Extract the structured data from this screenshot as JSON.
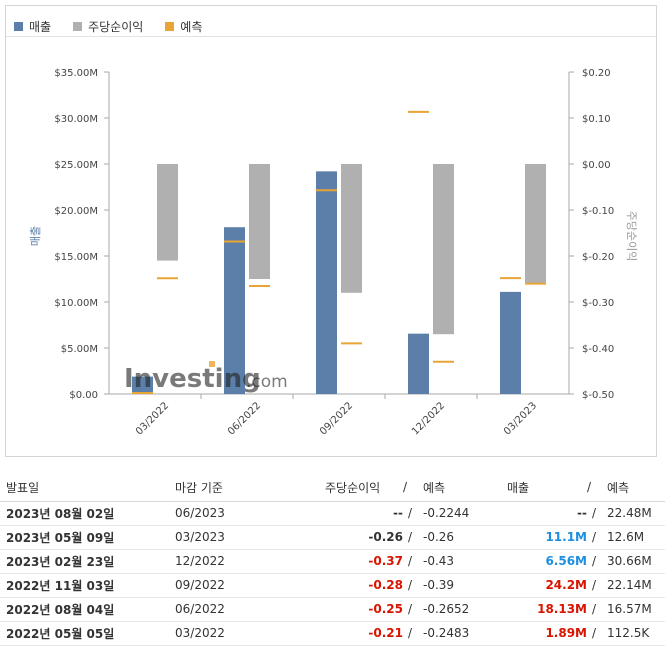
{
  "legend": [
    {
      "label": "매출",
      "color": "#5b7fa8"
    },
    {
      "label": "주당순이익",
      "color": "#b0b0b0"
    },
    {
      "label": "예측",
      "color": "#e8a435"
    }
  ],
  "watermark": {
    "brand": "Investing",
    "suffix": ".com"
  },
  "chart_data": {
    "type": "bar",
    "categories": [
      "03/2022",
      "06/2022",
      "09/2022",
      "12/2022",
      "03/2023"
    ],
    "left_axis": {
      "label": "매출",
      "ticks": [
        "$0.00",
        "$5.00M",
        "$10.00M",
        "$15.00M",
        "$20.00M",
        "$25.00M",
        "$30.00M",
        "$35.00M"
      ],
      "ylim": [
        0,
        35
      ]
    },
    "right_axis": {
      "label": "주당순이익",
      "ticks": [
        "$-0.50",
        "$-0.40",
        "$-0.30",
        "$-0.20",
        "$-0.10",
        "$0.00",
        "$0.10",
        "$0.20"
      ],
      "ylim": [
        -0.5,
        0.2
      ]
    },
    "series": [
      {
        "name": "매출",
        "axis": "left",
        "values": [
          1.89,
          18.13,
          24.2,
          6.56,
          11.1
        ]
      },
      {
        "name": "매출 예측",
        "axis": "left",
        "values": [
          0.1125,
          16.57,
          22.14,
          30.66,
          12.6
        ]
      },
      {
        "name": "주당순이익",
        "axis": "right",
        "values": [
          -0.21,
          -0.25,
          -0.28,
          -0.37,
          -0.26
        ]
      },
      {
        "name": "주당순이익 예측",
        "axis": "right",
        "values": [
          -0.2483,
          -0.2652,
          -0.39,
          -0.43,
          -0.26
        ]
      }
    ],
    "grid": false
  },
  "table": {
    "headers": {
      "date": "발표일",
      "period": "마감 기준",
      "eps": "주당순이익",
      "sep": "/",
      "eps_forecast": "예측",
      "revenue": "매출",
      "revenue_forecast": "예측"
    },
    "rows": [
      {
        "date": "2023년 08월 02일",
        "period": "06/2023",
        "eps": "--",
        "eps_forecast": "-0.2244",
        "revenue": "--",
        "revenue_forecast": "22.48M",
        "eps_style": "none",
        "rev_style": "none"
      },
      {
        "date": "2023년 05월 09일",
        "period": "03/2023",
        "eps": "-0.26",
        "eps_forecast": "-0.26",
        "revenue": "11.1M",
        "revenue_forecast": "12.6M",
        "eps_style": "none",
        "rev_style": "pos-blue"
      },
      {
        "date": "2023년 02월 23일",
        "period": "12/2022",
        "eps": "-0.37",
        "eps_forecast": "-0.43",
        "revenue": "6.56M",
        "revenue_forecast": "30.66M",
        "eps_style": "neg",
        "rev_style": "pos-blue"
      },
      {
        "date": "2022년 11월 03일",
        "period": "09/2022",
        "eps": "-0.28",
        "eps_forecast": "-0.39",
        "revenue": "24.2M",
        "revenue_forecast": "22.14M",
        "eps_style": "neg",
        "rev_style": "pos-red"
      },
      {
        "date": "2022년 08월 04일",
        "period": "06/2022",
        "eps": "-0.25",
        "eps_forecast": "-0.2652",
        "revenue": "18.13M",
        "revenue_forecast": "16.57M",
        "eps_style": "neg",
        "rev_style": "pos-red"
      },
      {
        "date": "2022년 05월 05일",
        "period": "03/2022",
        "eps": "-0.21",
        "eps_forecast": "-0.2483",
        "revenue": "1.89M",
        "revenue_forecast": "112.5K",
        "eps_style": "neg",
        "rev_style": "pos-red"
      }
    ]
  }
}
